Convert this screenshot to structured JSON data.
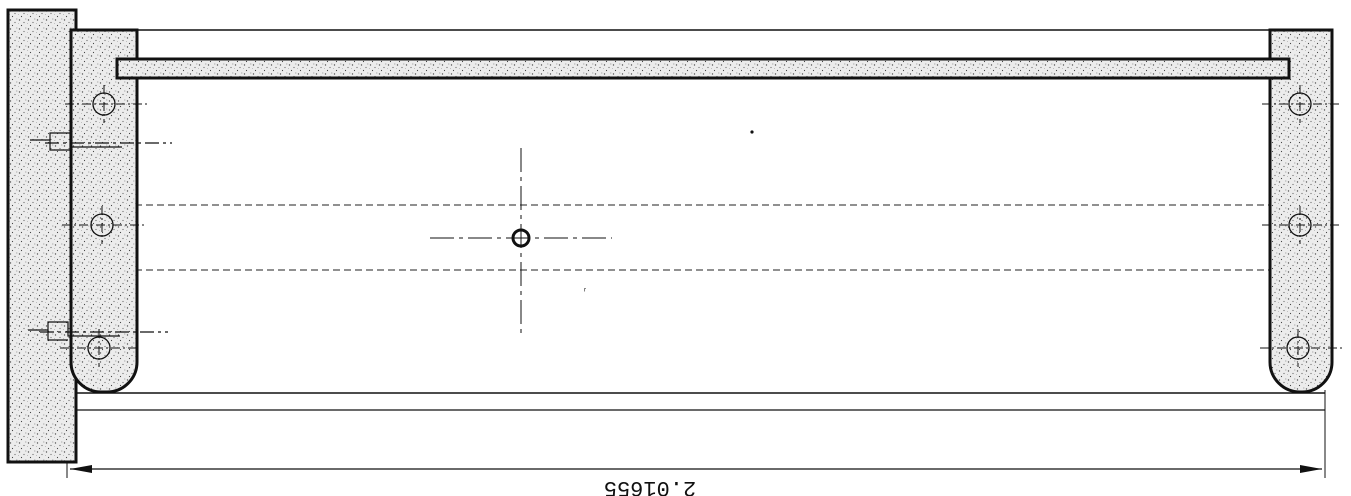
{
  "drawing": {
    "dimension_label": "2.01655",
    "colors": {
      "line": "#111111",
      "stipple_fill": "#e9e9e9",
      "background": "#ffffff"
    }
  }
}
